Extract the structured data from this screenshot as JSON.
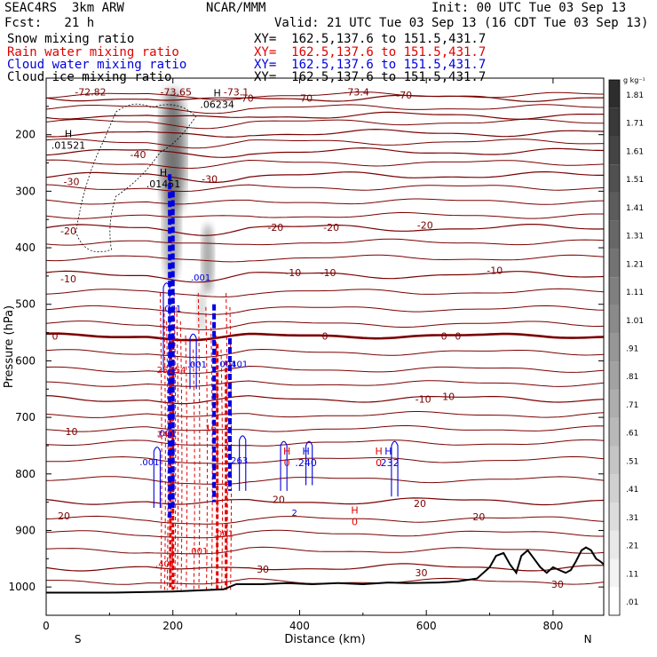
{
  "header": {
    "model": "SEAC4RS  3km ARW",
    "center": "NCAR/MMM",
    "init": "Init: 00 UTC Tue 03 Sep 13",
    "fcst": "Fcst:   21 h",
    "valid": "Valid: 21 UTC Tue 03 Sep 13 (16 CDT Tue 03 Sep 13)"
  },
  "fields": [
    {
      "label": "Snow mixing ratio",
      "xy": "XY=  162.5,137.6 to 151.5,431.7",
      "color": "#000000"
    },
    {
      "label": "Rain water mixing ratio",
      "xy": "XY=  162.5,137.6 to 151.5,431.7",
      "color": "#e00000"
    },
    {
      "label": "Cloud water mixing ratio",
      "xy": "XY=  162.5,137.6 to 151.5,431.7",
      "color": "#0000e0"
    },
    {
      "label": "Cloud ice mixing ratio",
      "xy": "XY=  162.5,137.6 to 151.5,431.7",
      "color": "#000000"
    }
  ],
  "chart_data": {
    "type": "cross-section",
    "xlabel": "Distance (km)",
    "ylabel": "Pressure (hPa)",
    "xlim": [
      0,
      880
    ],
    "ylim": [
      1050,
      100
    ],
    "x_ticks": [
      0,
      200,
      400,
      600,
      800
    ],
    "y_ticks": [
      200,
      300,
      400,
      500,
      600,
      700,
      800,
      900,
      1000
    ],
    "y_tick_labels": [
      "200",
      "300",
      "400",
      "500",
      "600",
      "700",
      "800",
      "900",
      "1000"
    ],
    "endpoint_left": "S",
    "endpoint_right": "N",
    "colorbar": {
      "unit": "g kg⁻¹",
      "labels": [
        ".01",
        ".11",
        ".21",
        ".31",
        ".41",
        ".51",
        ".61",
        ".71",
        ".81",
        ".91",
        "1.01",
        "1.11",
        "1.21",
        "1.31",
        "1.41",
        "1.51",
        "1.61",
        "1.71",
        "1.81"
      ]
    },
    "isotherms": [
      {
        "t": -70,
        "p": 135
      },
      {
        "t": -60,
        "p": 166
      },
      {
        "t": -50,
        "p": 197
      },
      {
        "t": -40,
        "p": 230
      },
      {
        "t": -30,
        "p": 272
      },
      {
        "t": -20,
        "p": 365
      },
      {
        "t": -10,
        "p": 448
      },
      {
        "t": 0,
        "p": 556
      },
      {
        "t": 10,
        "p": 667
      },
      {
        "t": 20,
        "p": 848
      },
      {
        "t": 30,
        "p": 965
      }
    ],
    "isotherm_extra": [
      {
        "p": 130
      },
      {
        "p": 152
      },
      {
        "p": 178
      },
      {
        "p": 213
      },
      {
        "p": 250
      },
      {
        "p": 293
      },
      {
        "p": 318
      },
      {
        "p": 343
      },
      {
        "p": 390
      },
      {
        "p": 418
      },
      {
        "p": 478
      },
      {
        "p": 508
      },
      {
        "p": 535
      },
      {
        "p": 585
      },
      {
        "p": 615
      },
      {
        "p": 640
      },
      {
        "p": 695
      },
      {
        "p": 720
      },
      {
        "p": 745
      },
      {
        "p": 775
      },
      {
        "p": 810
      },
      {
        "p": 880
      },
      {
        "p": 905
      },
      {
        "p": 935
      },
      {
        "p": 990
      }
    ],
    "contour_labels": [
      {
        "text": "-72.82",
        "x": 70,
        "p": 124
      },
      {
        "text": "-73.65",
        "x": 205,
        "p": 124
      },
      {
        "text": "-73.1",
        "x": 300,
        "p": 124
      },
      {
        "text": "-73.4",
        "x": 490,
        "p": 124
      },
      {
        "text": "-70",
        "x": 565,
        "p": 130
      },
      {
        "text": "-70",
        "x": 315,
        "p": 135
      },
      {
        "text": "-70",
        "x": 408,
        "p": 135
      },
      {
        "text": "-40",
        "x": 145,
        "p": 235
      },
      {
        "text": "-30",
        "x": 40,
        "p": 283
      },
      {
        "text": "-30",
        "x": 258,
        "p": 278
      },
      {
        "text": "-20",
        "x": 35,
        "p": 370
      },
      {
        "text": "-20",
        "x": 362,
        "p": 364
      },
      {
        "text": "-20",
        "x": 450,
        "p": 364
      },
      {
        "text": "-20",
        "x": 598,
        "p": 360
      },
      {
        "text": "-10",
        "x": 35,
        "p": 455
      },
      {
        "text": "-10",
        "x": 390,
        "p": 444
      },
      {
        "text": "-10",
        "x": 445,
        "p": 444
      },
      {
        "text": "-10",
        "x": 708,
        "p": 440
      },
      {
        "text": "0",
        "x": 14,
        "p": 556
      },
      {
        "text": "0",
        "x": 440,
        "p": 556
      },
      {
        "text": "0",
        "x": 628,
        "p": 556
      },
      {
        "text": "0",
        "x": 650,
        "p": 556
      },
      {
        "text": "-10",
        "x": 595,
        "p": 668
      },
      {
        "text": "10",
        "x": 635,
        "p": 663
      },
      {
        "text": "10",
        "x": 40,
        "p": 725
      },
      {
        "text": "20",
        "x": 28,
        "p": 874
      },
      {
        "text": "20",
        "x": 367,
        "p": 845
      },
      {
        "text": "20",
        "x": 590,
        "p": 852
      },
      {
        "text": "20",
        "x": 683,
        "p": 876
      },
      {
        "text": "30",
        "x": 342,
        "p": 968
      },
      {
        "text": "30",
        "x": 592,
        "p": 975
      },
      {
        "text": "30",
        "x": 807,
        "p": 995
      }
    ],
    "maxima": [
      {
        "label": ".06234",
        "x": 270,
        "p": 145
      },
      {
        "label": ".01521",
        "x": 35,
        "p": 217
      },
      {
        "label": ".01451",
        "x": 185,
        "p": 285
      }
    ],
    "rain_maxima": [
      {
        "label": "0",
        "x": 380,
        "p": 778
      },
      {
        "label": "0",
        "x": 525,
        "p": 778
      },
      {
        "label": "0",
        "x": 487,
        "p": 883
      }
    ],
    "cloud_maxima": [
      {
        "label": ".240",
        "x": 410,
        "p": 778
      },
      {
        "label": ".232",
        "x": 540,
        "p": 778
      }
    ],
    "blue_labels": [
      {
        "text": ".001",
        "x": 163,
        "p": 778
      },
      {
        "text": ".001",
        "x": 244,
        "p": 452
      },
      {
        "text": ".001",
        "x": 198,
        "p": 507
      },
      {
        "text": ".001",
        "x": 238,
        "p": 606
      },
      {
        "text": ".001",
        "x": 285,
        "p": 605
      },
      {
        "text": "401",
        "x": 305,
        "p": 605
      },
      {
        "text": ".001",
        "x": 190,
        "p": 727
      },
      {
        "text": "2",
        "x": 392,
        "p": 868
      },
      {
        "text": "263",
        "x": 305,
        "p": 775
      }
    ],
    "red_labels": [
      {
        "text": "251",
        "x": 188,
        "p": 615
      },
      {
        "text": "54",
        "x": 212,
        "p": 615
      },
      {
        "text": "140",
        "x": 188,
        "p": 729
      },
      {
        "text": ".001",
        "x": 240,
        "p": 935
      },
      {
        "text": ".401",
        "x": 188,
        "p": 958
      },
      {
        "text": "16",
        "x": 260,
        "p": 718
      },
      {
        "text": ".001",
        "x": 280,
        "p": 905
      }
    ],
    "terrain": [
      [
        0,
        1010
      ],
      [
        100,
        1010
      ],
      [
        200,
        1008
      ],
      [
        280,
        1004
      ],
      [
        300,
        995
      ],
      [
        340,
        995
      ],
      [
        380,
        993
      ],
      [
        420,
        995
      ],
      [
        460,
        993
      ],
      [
        500,
        995
      ],
      [
        540,
        992
      ],
      [
        570,
        993
      ],
      [
        620,
        992
      ],
      [
        650,
        990
      ],
      [
        680,
        985
      ],
      [
        700,
        965
      ],
      [
        710,
        945
      ],
      [
        722,
        940
      ],
      [
        732,
        960
      ],
      [
        742,
        975
      ],
      [
        750,
        945
      ],
      [
        760,
        935
      ],
      [
        770,
        950
      ],
      [
        780,
        965
      ],
      [
        790,
        975
      ],
      [
        800,
        965
      ],
      [
        810,
        970
      ],
      [
        820,
        975
      ],
      [
        828,
        970
      ],
      [
        836,
        955
      ],
      [
        845,
        935
      ],
      [
        852,
        930
      ],
      [
        860,
        935
      ],
      [
        868,
        950
      ],
      [
        875,
        955
      ],
      [
        880,
        960
      ]
    ]
  }
}
